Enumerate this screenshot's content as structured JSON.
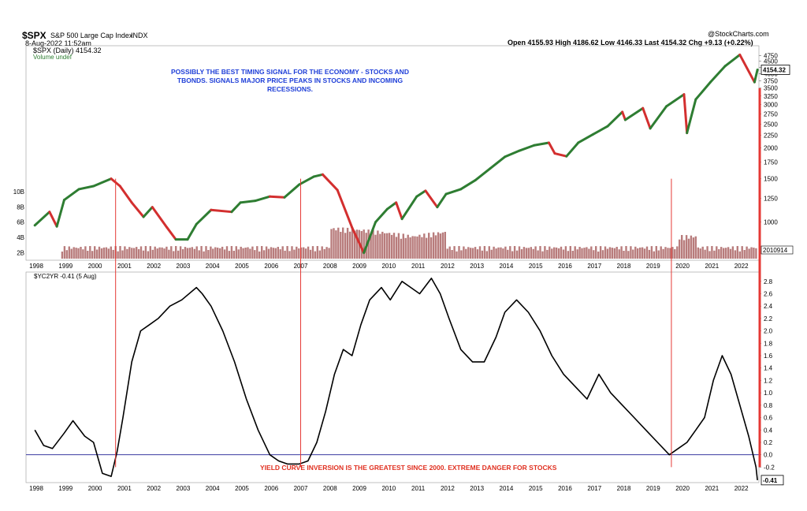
{
  "header": {
    "symbol": "$SPX",
    "name": "S&P 500 Large Cap Index",
    "exchange": "INDX",
    "date": "8-Aug-2022 11:52am",
    "provider": "@StockCharts.com",
    "quote": "Open 4155.93  High 4186.62  Low 4146.33  Last 4154.32  Chg +9.13 (+0.22%)",
    "legend_price": "$SPX (Daily) 4154.32",
    "legend_volume": "Volume undef"
  },
  "annotations": {
    "blue": "POSSIBLY THE BEST TIMING SIGNAL FOR THE ECONOMY - STOCKS AND TBONDS.  SIGNALS MAJOR PRICE PEAKS IN STOCKS AND INCOMING RECESSIONS.",
    "red": "YIELD CURVE INVERSION IS THE GREATEST SINCE 2000.  EXTREME DANGER FOR STOCKS"
  },
  "colors": {
    "up": "#2e7d32",
    "down": "#d32f2f",
    "volume": "#a05050",
    "signal": "#e53935",
    "zero": "#3a3aa0",
    "line": "#000000"
  },
  "chart_data": [
    {
      "type": "line",
      "title": "$SPX (Daily) 4154.32",
      "scale": "log",
      "x_ticks": [
        "1998",
        "1999",
        "2000",
        "2001",
        "2002",
        "2003",
        "2004",
        "2005",
        "2006",
        "2007",
        "2008",
        "2009",
        "2010",
        "2011",
        "2012",
        "2013",
        "2014",
        "2015",
        "2016",
        "2017",
        "2018",
        "2019",
        "2020",
        "2021",
        "2022"
      ],
      "y_ticks": [
        "1000",
        "1250",
        "1500",
        "1750",
        "2000",
        "2250",
        "2500",
        "2750",
        "3000",
        "3250",
        "3500",
        "3750",
        "4000",
        "4250",
        "4500",
        "4750"
      ],
      "last_label": "4154.32",
      "volume_label": "2010914",
      "volume_ticks": [
        "2B",
        "4B",
        "6B",
        "8B",
        "10B"
      ],
      "volume_tick_values": [
        2,
        4,
        6,
        8,
        10
      ],
      "x": [
        1998.0,
        1998.5,
        1998.75,
        1999.0,
        1999.5,
        2000.0,
        2000.6,
        2000.9,
        2001.3,
        2001.7,
        2002.0,
        2002.5,
        2002.8,
        2003.2,
        2003.5,
        2004.0,
        2004.7,
        2005.0,
        2005.5,
        2006.0,
        2006.5,
        2007.0,
        2007.5,
        2007.8,
        2008.3,
        2008.8,
        2009.2,
        2009.6,
        2010.0,
        2010.3,
        2010.5,
        2011.0,
        2011.3,
        2011.7,
        2012.0,
        2012.5,
        2013.0,
        2013.5,
        2014.0,
        2014.5,
        2015.0,
        2015.5,
        2015.7,
        2016.1,
        2016.5,
        2017.0,
        2017.5,
        2018.0,
        2018.1,
        2018.7,
        2018.95,
        2019.5,
        2020.1,
        2020.2,
        2020.5,
        2021.0,
        2021.5,
        2022.0,
        2022.5,
        2022.6
      ],
      "values": [
        970,
        1100,
        960,
        1230,
        1360,
        1400,
        1500,
        1400,
        1200,
        1050,
        1150,
        950,
        850,
        850,
        980,
        1120,
        1100,
        1200,
        1220,
        1270,
        1260,
        1420,
        1530,
        1560,
        1350,
        950,
        750,
        1000,
        1130,
        1200,
        1030,
        1270,
        1340,
        1150,
        1300,
        1360,
        1480,
        1650,
        1840,
        1950,
        2050,
        2100,
        1900,
        1850,
        2100,
        2270,
        2450,
        2800,
        2600,
        2900,
        2400,
        2950,
        3300,
        2300,
        3150,
        3700,
        4300,
        4780,
        3700,
        4154
      ]
    },
    {
      "type": "line",
      "title": "$YC2YR -0.41 (5 Aug)",
      "x_ticks": [
        "1998",
        "1999",
        "2000",
        "2001",
        "2002",
        "2003",
        "2004",
        "2005",
        "2006",
        "2007",
        "2008",
        "2009",
        "2010",
        "2011",
        "2012",
        "2013",
        "2014",
        "2015",
        "2016",
        "2017",
        "2018",
        "2019",
        "2020",
        "2021",
        "2022"
      ],
      "y_ticks": [
        "-0.2",
        "0.0",
        "0.2",
        "0.4",
        "0.6",
        "0.8",
        "1.0",
        "1.2",
        "1.4",
        "1.6",
        "1.8",
        "2.0",
        "2.2",
        "2.4",
        "2.6",
        "2.8"
      ],
      "ylim": [
        -0.45,
        2.95
      ],
      "last_label": "-0.41",
      "x": [
        1998.0,
        1998.3,
        1998.6,
        1999.0,
        1999.3,
        1999.7,
        2000.0,
        2000.3,
        2000.6,
        2000.8,
        2001.0,
        2001.3,
        2001.6,
        2001.9,
        2002.2,
        2002.6,
        2003.0,
        2003.5,
        2003.7,
        2004.0,
        2004.4,
        2004.8,
        2005.2,
        2005.6,
        2006.0,
        2006.3,
        2006.6,
        2007.0,
        2007.3,
        2007.6,
        2007.9,
        2008.2,
        2008.5,
        2008.8,
        2009.1,
        2009.4,
        2009.8,
        2010.1,
        2010.5,
        2010.8,
        2011.1,
        2011.5,
        2011.8,
        2012.1,
        2012.5,
        2012.9,
        2013.3,
        2013.7,
        2014.0,
        2014.4,
        2014.8,
        2015.2,
        2015.6,
        2016.0,
        2016.4,
        2016.8,
        2017.2,
        2017.6,
        2018.0,
        2018.4,
        2018.8,
        2019.2,
        2019.6,
        2019.9,
        2020.2,
        2020.5,
        2020.8,
        2021.1,
        2021.4,
        2021.7,
        2022.0,
        2022.3,
        2022.55,
        2022.6
      ],
      "values": [
        0.4,
        0.15,
        0.1,
        0.35,
        0.55,
        0.3,
        0.2,
        -0.3,
        -0.35,
        0.05,
        0.6,
        1.5,
        2.0,
        2.1,
        2.2,
        2.4,
        2.5,
        2.7,
        2.6,
        2.4,
        2.0,
        1.5,
        0.9,
        0.4,
        0.0,
        -0.1,
        -0.15,
        -0.15,
        -0.1,
        0.2,
        0.7,
        1.3,
        1.7,
        1.6,
        2.1,
        2.5,
        2.7,
        2.5,
        2.8,
        2.7,
        2.6,
        2.85,
        2.6,
        2.2,
        1.7,
        1.5,
        1.5,
        1.9,
        2.3,
        2.5,
        2.3,
        2.0,
        1.6,
        1.3,
        1.1,
        0.9,
        1.3,
        1.0,
        0.8,
        0.6,
        0.4,
        0.2,
        0.0,
        0.1,
        0.2,
        0.4,
        0.6,
        1.2,
        1.6,
        1.3,
        0.8,
        0.3,
        -0.2,
        -0.41
      ]
    }
  ],
  "signals": [
    2000.75,
    2007.05,
    2019.67
  ]
}
